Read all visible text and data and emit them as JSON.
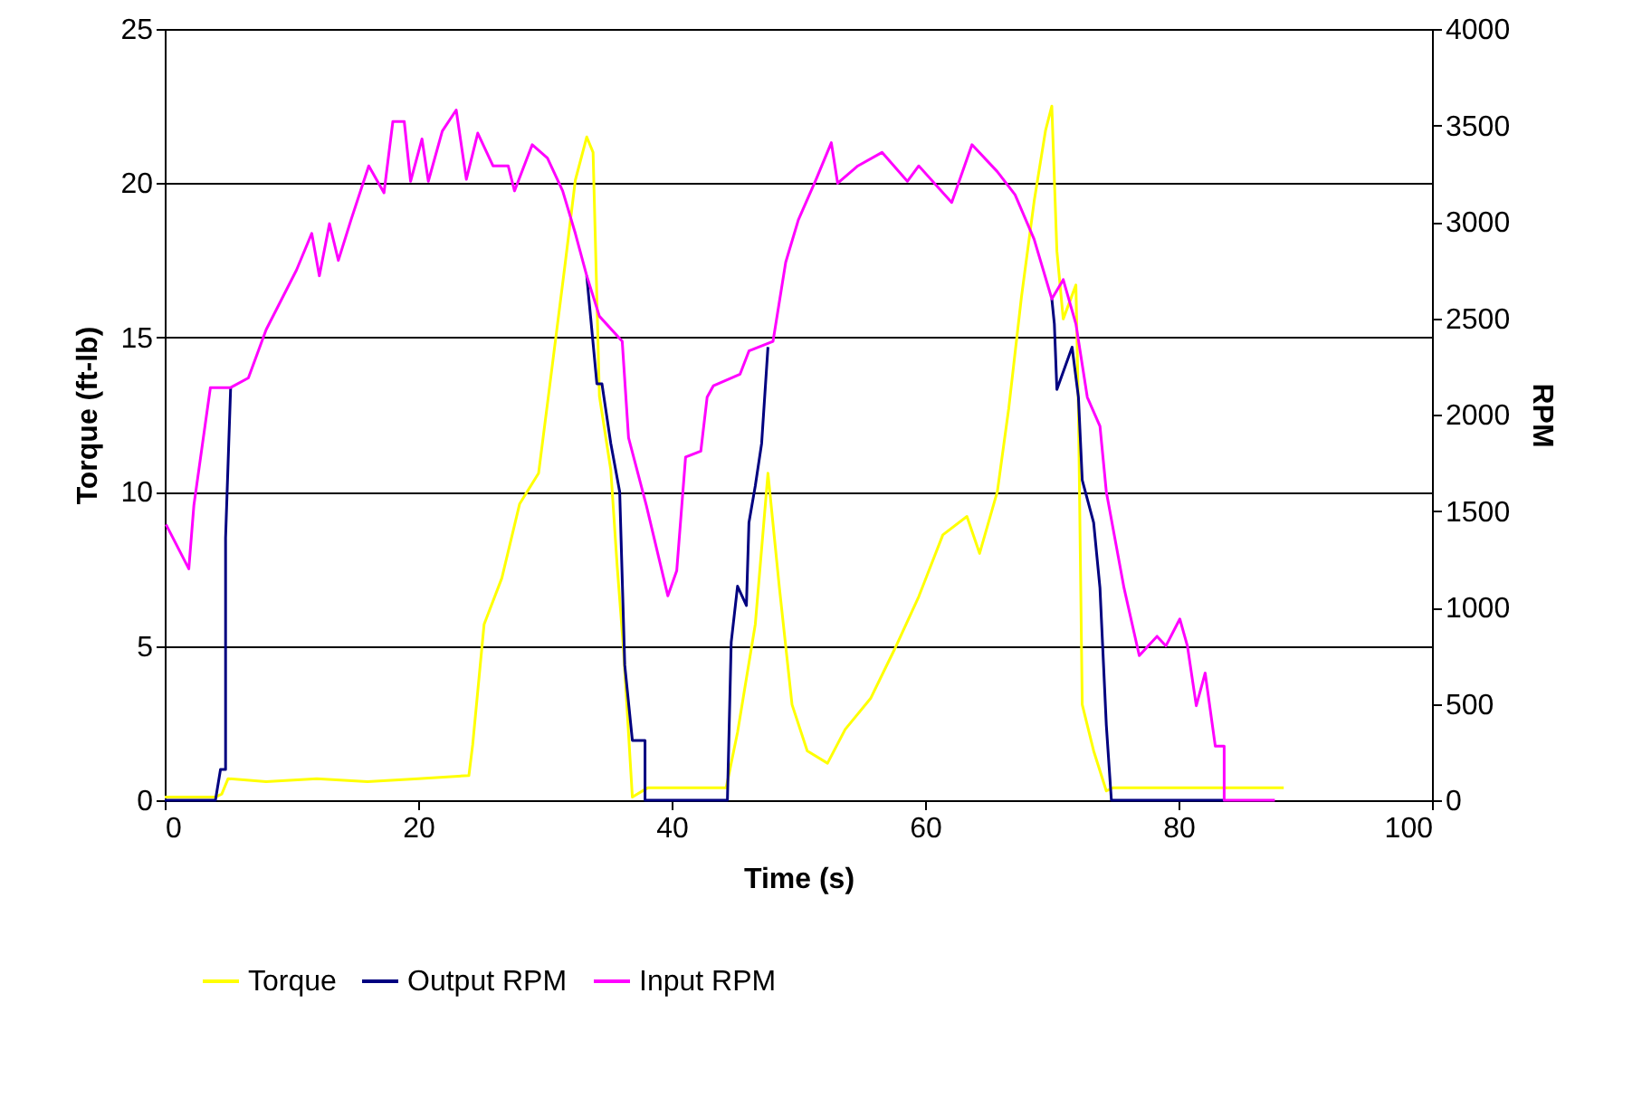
{
  "chart_data": {
    "type": "line",
    "xlabel": "Time (s)",
    "ylabel": "Torque (ft-lb)",
    "y2label": "RPM",
    "xlim": [
      0,
      100
    ],
    "xticks": [
      0,
      20,
      40,
      60,
      80,
      100
    ],
    "ylim": [
      0,
      25
    ],
    "yticks": [
      0,
      5,
      10,
      15,
      20,
      25
    ],
    "y2lim": [
      0,
      4000
    ],
    "y2ticks": [
      0,
      500,
      1000,
      1500,
      2000,
      2500,
      3000,
      3500,
      4000
    ],
    "grid": "y",
    "legend": "bottom",
    "line_style": "solid",
    "marker": "none",
    "series": [
      {
        "name": "Torque",
        "color": "#ffff00",
        "x": [
          0,
          4,
          4.5,
          5,
          8,
          12,
          16,
          20,
          24,
          24.3,
          25.2,
          26.6,
          28,
          29.5,
          30.4,
          31.6,
          32.4,
          33.3,
          33.8,
          34.3,
          35.2,
          35.7,
          36.2,
          36.9,
          38.1,
          44.3,
          45.2,
          46.6,
          47.6,
          48.5,
          49.5,
          50.7,
          52.3,
          53.7,
          55.7,
          57.6,
          59.5,
          61.4,
          63.3,
          64.3,
          65.7,
          66.6,
          67.6,
          68.6,
          69.5,
          70,
          70.4,
          70.9,
          71.9,
          72.1,
          72.4,
          73.3,
          74.3,
          74.8,
          88.3
        ],
        "values": [
          0.1,
          0.1,
          0.2,
          0.7,
          0.6,
          0.7,
          0.6,
          0.7,
          0.8,
          1.8,
          5.7,
          7.2,
          9.6,
          10.6,
          13.5,
          17.4,
          20.1,
          21.5,
          21,
          13.1,
          10.7,
          7.6,
          4.9,
          0.1,
          0.4,
          0.4,
          2.2,
          5.7,
          10.6,
          6.9,
          3.1,
          1.6,
          1.2,
          2.3,
          3.3,
          4.9,
          6.6,
          8.6,
          9.2,
          8,
          10,
          12.7,
          16.3,
          19.4,
          21.7,
          22.5,
          17.8,
          15.6,
          16.7,
          12.7,
          3.1,
          1.6,
          0.3,
          0.4,
          0.4
        ]
      },
      {
        "name": "Output RPM",
        "color": "#000080",
        "axis": "y2",
        "x": [
          0,
          4.0,
          4.4,
          4.8,
          4.8,
          5.2,
          6.6,
          8,
          10.4,
          11.6,
          12.2,
          13,
          13.7,
          14.7,
          16.1,
          17.3,
          18,
          18.9,
          19.4,
          20.3,
          20.8,
          21.9,
          23,
          23.8,
          24.7,
          25.9,
          27.1,
          27.6,
          29,
          30.2,
          31.4,
          32.4,
          33.3,
          33.6,
          34.1,
          34.5,
          35.2,
          35.9,
          36.3,
          36.9,
          37.9,
          37.9,
          44.4,
          44.7,
          45.2,
          45.9,
          46.1,
          46.6,
          47.1,
          47.6,
          49,
          50,
          51.4,
          52.6,
          53.1,
          54.7,
          56.6,
          58.6,
          59.5,
          62.1,
          63.7,
          65.7,
          67.1,
          68.6,
          70,
          70.2,
          70.4,
          71.6,
          72.1,
          72.4,
          73.3,
          73.8,
          74.3,
          74.7,
          83.6
        ],
        "values": [
          0,
          0,
          160,
          160,
          1360,
          2140,
          null,
          null,
          null,
          null,
          null,
          null,
          null,
          null,
          null,
          null,
          null,
          null,
          null,
          null,
          null,
          null,
          null,
          null,
          null,
          null,
          null,
          null,
          null,
          null,
          null,
          null,
          2720,
          2510,
          2160,
          2160,
          1850,
          1600,
          700,
          310,
          310,
          0,
          0,
          820,
          1110,
          1010,
          1440,
          1630,
          1850,
          2350,
          null,
          null,
          null,
          null,
          null,
          null,
          null,
          null,
          null,
          null,
          null,
          null,
          null,
          null,
          2600,
          2470,
          2130,
          2350,
          2090,
          1660,
          1440,
          1100,
          390,
          0,
          0
        ]
      },
      {
        "name": "Input RPM",
        "color": "#ff00ff",
        "axis": "y2",
        "x": [
          0.1,
          1.9,
          2.3,
          3.6,
          5.2,
          6.6,
          8,
          10.4,
          11.6,
          12.2,
          13,
          13.7,
          14.7,
          16.1,
          17.3,
          18,
          18.9,
          19.4,
          20.3,
          20.8,
          21.9,
          23,
          23.8,
          24.7,
          25.9,
          27.1,
          27.6,
          29,
          30.2,
          31.4,
          32.4,
          33.3,
          34.3,
          36.1,
          36.6,
          38,
          39.7,
          40.4,
          41.1,
          42.3,
          42.8,
          43.3,
          45.4,
          46.1,
          48,
          49,
          50,
          51.4,
          52.6,
          53.1,
          54.7,
          56.6,
          58.6,
          59.5,
          62.1,
          63.7,
          65.7,
          67.1,
          68.6,
          70,
          70.9,
          71.9,
          72.8,
          73.8,
          74.3,
          75.7,
          76.9,
          78.3,
          79,
          80.1,
          80.7,
          81.4,
          82.1,
          82.9,
          83.6,
          83.6,
          87.6
        ],
        "values": [
          1430,
          1200,
          1530,
          2140,
          2140,
          2190,
          2440,
          2750,
          2940,
          2720,
          2990,
          2800,
          3010,
          3290,
          3150,
          3520,
          3520,
          3210,
          3430,
          3210,
          3470,
          3580,
          3220,
          3460,
          3290,
          3290,
          3160,
          3400,
          3330,
          3160,
          2940,
          2720,
          2510,
          2380,
          1880,
          1530,
          1060,
          1190,
          1780,
          1810,
          2090,
          2150,
          2210,
          2330,
          2380,
          2790,
          3010,
          3220,
          3410,
          3200,
          3290,
          3360,
          3210,
          3290,
          3100,
          3400,
          3260,
          3140,
          2910,
          2600,
          2700,
          2470,
          2090,
          1940,
          1600,
          1100,
          750,
          850,
          800,
          940,
          800,
          490,
          660,
          280,
          280,
          0,
          0
        ]
      }
    ]
  }
}
